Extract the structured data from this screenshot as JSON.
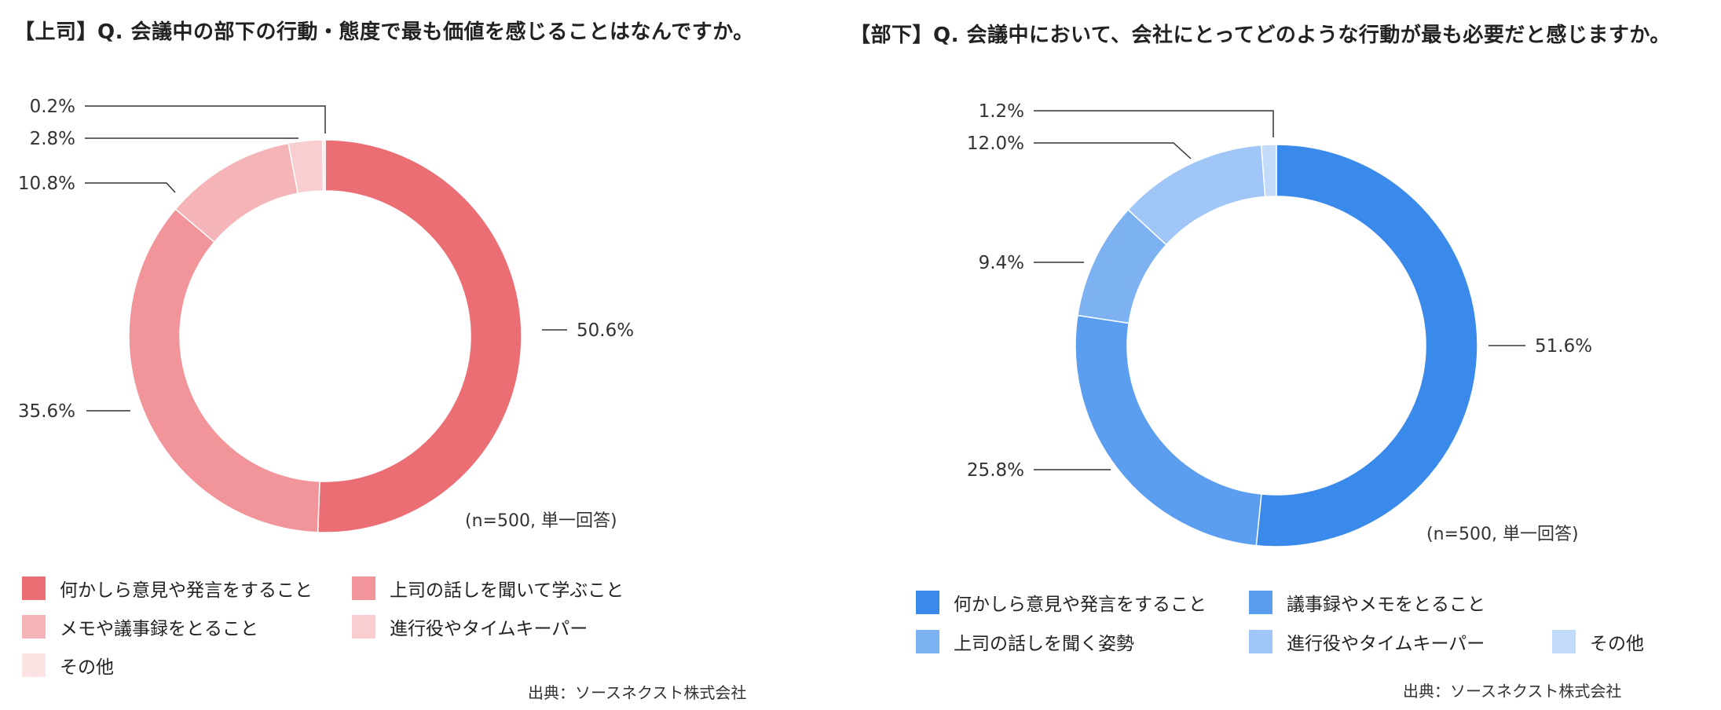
{
  "panels": {
    "left": {
      "title": "【上司】Q. 会議中の部下の行動・態度で最も価値を感じることはなんですか。",
      "note": "(n=500, 単一回答)",
      "source": "出典：ソースネクスト株式会社"
    },
    "right": {
      "title": "【部下】Q. 会議中において、会社にとってどのような行動が最も必要だと感じますか。",
      "note": "(n=500, 単一回答)",
      "source": "出典：ソースネクスト株式会社"
    }
  },
  "chart_data": [
    {
      "type": "pie",
      "donut": true,
      "unit": "%",
      "categories": [
        "何かしら意見や発言をすること",
        "上司の話しを聞いて学ぶこと",
        "メモや議事録をとること",
        "進行役やタイムキーパー",
        "その他"
      ],
      "values": [
        50.6,
        35.6,
        10.8,
        2.8,
        0.2
      ],
      "labels": [
        "50.6%",
        "35.6%",
        "10.8%",
        "2.8%",
        "0.2%"
      ],
      "colors": [
        "#ec6e75",
        "#f1959a",
        "#f5b5b8",
        "#f8ced1",
        "#fbe3e4"
      ]
    },
    {
      "type": "pie",
      "donut": true,
      "unit": "%",
      "categories": [
        "何かしら意見や発言をすること",
        "議事録やメモをとること",
        "上司の話しを聞く姿勢",
        "進行役やタイムキーパー",
        "その他"
      ],
      "values": [
        51.6,
        25.8,
        9.4,
        12.0,
        1.2
      ],
      "labels": [
        "51.6%",
        "25.8%",
        "9.4%",
        "12.0%",
        "1.2%"
      ],
      "colors": [
        "#3a8aeb",
        "#5b9ef0",
        "#7db2f2",
        "#9fc6f6",
        "#c3dbfa"
      ]
    }
  ]
}
